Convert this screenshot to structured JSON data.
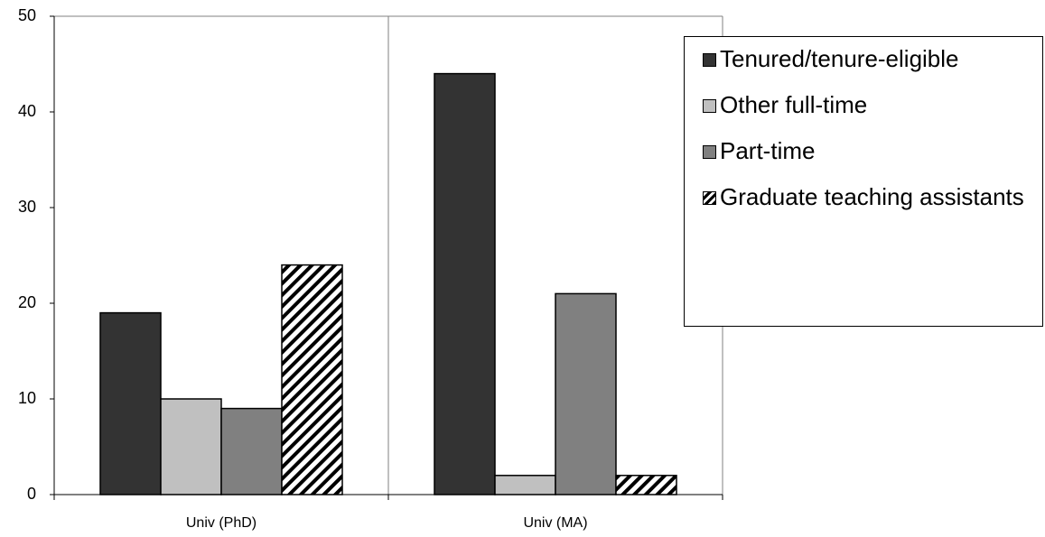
{
  "chart_data": {
    "type": "bar",
    "categories": [
      "Univ (PhD)",
      "Univ (MA)"
    ],
    "series": [
      {
        "name": "Tenured/tenure-eligible",
        "color": "#333333",
        "values": [
          19,
          44
        ]
      },
      {
        "name": "Other full-time",
        "color": "#c0c0c0",
        "values": [
          10,
          2
        ]
      },
      {
        "name": "Part-time",
        "color": "#808080",
        "values": [
          9,
          21
        ]
      },
      {
        "name": "Graduate teaching assistants",
        "color": "#ffffff",
        "pattern": "hatch",
        "values": [
          24,
          2
        ]
      }
    ],
    "ylim": [
      0,
      50
    ],
    "yticks": [
      0,
      10,
      20,
      30,
      40,
      50
    ]
  }
}
